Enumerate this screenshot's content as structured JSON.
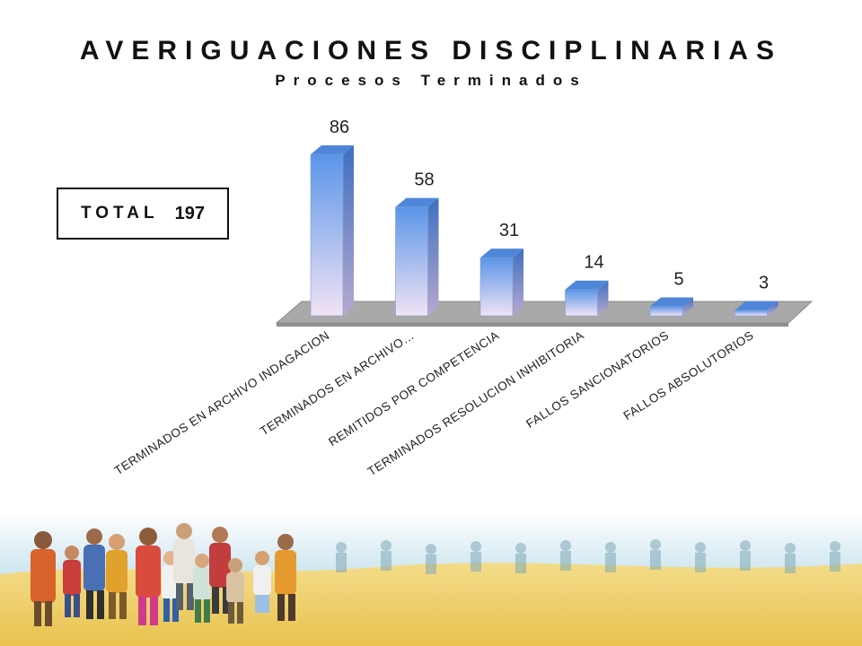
{
  "header": {
    "title": "AVERIGUACIONES DISCIPLINARIAS",
    "subtitle": "Procesos Terminados"
  },
  "total": {
    "label": "TOTAL",
    "value": "197"
  },
  "chart_data": {
    "type": "bar",
    "categories": [
      "TERMINADOS EN ARCHIVO INDAGACION",
      "TERMINADOS EN ARCHIVO…",
      "REMITIDOS POR COMPETENCIA",
      "TERMINADOS RESOLUCION INHIBITORIA",
      "FALLOS SANCIONATORIOS",
      "FALLOS ABSOLUTORIOS"
    ],
    "values": [
      86,
      58,
      31,
      14,
      5,
      3
    ],
    "data_labels": [
      "86",
      "58",
      "31",
      "14",
      "5",
      "3"
    ],
    "ylim": [
      0,
      86
    ],
    "grid": false,
    "legend": "none",
    "style": "3d-columns",
    "colors": {
      "bar_top": "#5b95e8",
      "bar_bottom": "#f1e3f4",
      "bar_side": "#3f6fc0",
      "floor": "#a9a9a9",
      "floor_edge": "#8a8a8a"
    }
  }
}
